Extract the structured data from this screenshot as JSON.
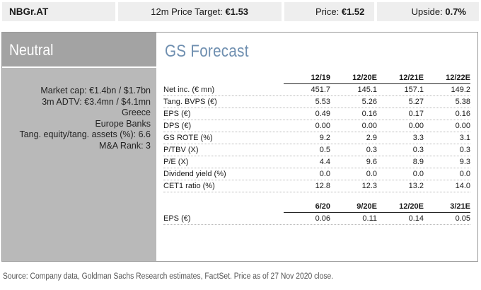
{
  "topbar": {
    "ticker": "NBGr.AT",
    "target_label": "12m Price Target:",
    "target_value": "€1.53",
    "price_label": "Price:",
    "price_value": "€1.52",
    "upside_label": "Upside:",
    "upside_value": "0.7%"
  },
  "left": {
    "rating": "Neutral",
    "info": [
      "Market cap: €1.4bn / $1.7bn",
      "3m ADTV: €3.4mn / $4.1mn",
      "Greece",
      "Europe Banks",
      "Tang. equity/tang. assets (%): 6.6",
      "M&A Rank: 3"
    ]
  },
  "forecast": {
    "title": "GS Forecast",
    "annual_headers": [
      "12/19",
      "12/20E",
      "12/21E",
      "12/22E"
    ],
    "annual_rows": [
      {
        "label": "Net inc. (€ mn)",
        "values": [
          "451.7",
          "145.1",
          "157.1",
          "149.2"
        ]
      },
      {
        "label": "Tang. BVPS (€)",
        "values": [
          "5.53",
          "5.26",
          "5.27",
          "5.38"
        ]
      },
      {
        "label": "EPS (€)",
        "values": [
          "0.49",
          "0.16",
          "0.17",
          "0.16"
        ]
      },
      {
        "label": "DPS (€)",
        "values": [
          "0.00",
          "0.00",
          "0.00",
          "0.00"
        ]
      },
      {
        "label": "GS ROTE (%)",
        "values": [
          "9.2",
          "2.9",
          "3.3",
          "3.1"
        ]
      },
      {
        "label": "P/TBV (X)",
        "values": [
          "0.5",
          "0.3",
          "0.3",
          "0.3"
        ]
      },
      {
        "label": "P/E (X)",
        "values": [
          "4.4",
          "9.6",
          "8.9",
          "9.3"
        ]
      },
      {
        "label": "Dividend yield (%)",
        "values": [
          "0.0",
          "0.0",
          "0.0",
          "0.0"
        ]
      },
      {
        "label": "CET1 ratio (%)",
        "values": [
          "12.8",
          "12.3",
          "13.2",
          "14.0"
        ]
      }
    ],
    "quarter_headers": [
      "6/20",
      "9/20E",
      "12/20E",
      "3/21E"
    ],
    "quarter_rows": [
      {
        "label": "EPS (€)",
        "values": [
          "0.06",
          "0.11",
          "0.14",
          "0.05"
        ]
      }
    ]
  },
  "source": "Source: Company data, Goldman Sachs Research estimates, FactSet. Price as of 27 Nov 2020 close."
}
